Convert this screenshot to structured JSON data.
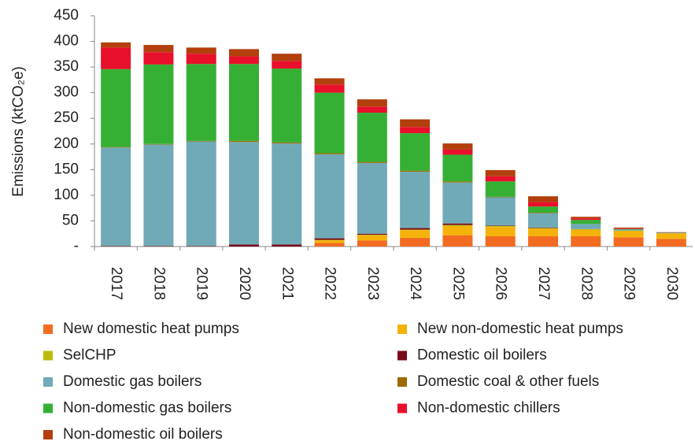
{
  "chart_data": {
    "type": "stacked_bar",
    "y_label": "Emissions (ktCO₂e)",
    "categories": [
      "2017",
      "2018",
      "2019",
      "2020",
      "2021",
      "2022",
      "2023",
      "2024",
      "2025",
      "2026",
      "2027",
      "2028",
      "2029",
      "2030"
    ],
    "ylim": [
      0,
      450
    ],
    "yticks": [
      {
        "value": 0,
        "label": "-"
      },
      50,
      100,
      150,
      200,
      250,
      300,
      350,
      400,
      450
    ],
    "legend": "bottom",
    "series": [
      {
        "name": "New domestic heat pumps",
        "color": "#f26b21",
        "values": [
          0,
          0,
          0,
          0,
          0,
          7,
          12,
          17,
          22,
          20,
          20,
          20,
          18,
          15
        ]
      },
      {
        "name": "New non-domestic heat pumps",
        "color": "#f5b20a",
        "values": [
          0,
          0,
          0,
          0,
          0,
          5,
          10,
          15,
          18,
          18,
          15,
          13,
          12,
          10
        ]
      },
      {
        "name": "SelCHP",
        "color": "#bcbc10",
        "values": [
          0,
          0,
          0,
          0,
          0,
          1,
          1,
          1,
          2,
          2,
          1,
          1,
          1,
          1
        ]
      },
      {
        "name": "Domestic oil boilers",
        "color": "#7a0a1a",
        "values": [
          1,
          1,
          1,
          4,
          4,
          3,
          2,
          3,
          3,
          1,
          1,
          0,
          0,
          0
        ]
      },
      {
        "name": "Domestic gas boilers",
        "color": "#70aab6",
        "values": [
          192,
          198,
          204,
          200,
          197,
          164,
          138,
          110,
          80,
          55,
          28,
          10,
          2,
          1
        ]
      },
      {
        "name": "Domestic coal & other fuels",
        "color": "#9c6a00",
        "values": [
          1,
          1,
          1,
          2,
          2,
          2,
          2,
          2,
          2,
          1,
          1,
          0,
          0,
          0
        ]
      },
      {
        "name": "Non-domestic gas boilers",
        "color": "#35b035",
        "values": [
          152,
          155,
          150,
          150,
          144,
          118,
          96,
          73,
          52,
          30,
          12,
          8,
          1,
          0
        ]
      },
      {
        "name": "Non-domestic chillers",
        "color": "#e8102a",
        "values": [
          42,
          24,
          20,
          15,
          15,
          16,
          12,
          12,
          10,
          10,
          9,
          3,
          1,
          0
        ]
      },
      {
        "name": "Non-domestic oil boilers",
        "color": "#b23f0c",
        "values": [
          10,
          14,
          12,
          14,
          14,
          12,
          14,
          15,
          12,
          12,
          11,
          3,
          2,
          1
        ]
      }
    ]
  }
}
